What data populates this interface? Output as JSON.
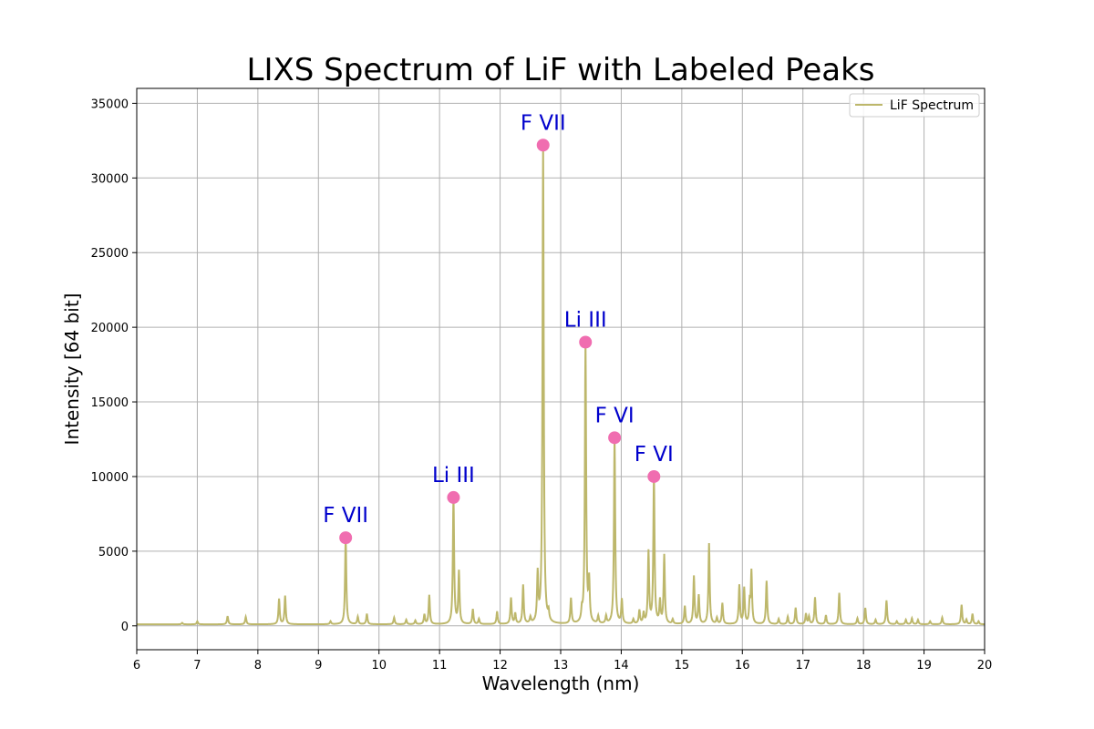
{
  "chart_data": {
    "type": "line",
    "title": "LIXS Spectrum of LiF with Labeled Peaks",
    "xlabel": "Wavelength (nm)",
    "ylabel": "Intensity [64 bit]",
    "xlim": [
      6,
      20
    ],
    "ylim": [
      -1600,
      36000
    ],
    "xticks": [
      6,
      7,
      8,
      9,
      10,
      11,
      12,
      13,
      14,
      15,
      16,
      17,
      18,
      19,
      20
    ],
    "yticks": [
      0,
      5000,
      10000,
      15000,
      20000,
      25000,
      30000,
      35000
    ],
    "grid": true,
    "legend_position": "top-right",
    "baseline": 100,
    "series": [
      {
        "name": "LiF Spectrum",
        "color": "#bdb76b",
        "peaks": [
          [
            6.75,
            100
          ],
          [
            7.0,
            200
          ],
          [
            7.5,
            550
          ],
          [
            7.8,
            500
          ],
          [
            8.35,
            1700
          ],
          [
            8.45,
            1900
          ],
          [
            9.2,
            200
          ],
          [
            9.45,
            5900
          ],
          [
            9.65,
            500
          ],
          [
            9.8,
            700
          ],
          [
            10.25,
            450
          ],
          [
            10.45,
            300
          ],
          [
            10.6,
            250
          ],
          [
            10.75,
            650
          ],
          [
            10.83,
            1950
          ],
          [
            11.23,
            8600
          ],
          [
            11.32,
            3500
          ],
          [
            11.55,
            1000
          ],
          [
            11.65,
            350
          ],
          [
            11.95,
            850
          ],
          [
            12.18,
            1750
          ],
          [
            12.25,
            700
          ],
          [
            12.38,
            2600
          ],
          [
            12.5,
            400
          ],
          [
            12.62,
            3200
          ],
          [
            12.71,
            32200
          ],
          [
            12.8,
            600
          ],
          [
            13.17,
            1700
          ],
          [
            13.35,
            700
          ],
          [
            13.41,
            19000
          ],
          [
            13.47,
            2700
          ],
          [
            13.62,
            500
          ],
          [
            13.75,
            500
          ],
          [
            13.89,
            12600
          ],
          [
            14.01,
            1600
          ],
          [
            14.2,
            300
          ],
          [
            14.3,
            900
          ],
          [
            14.37,
            700
          ],
          [
            14.45,
            4800
          ],
          [
            14.54,
            10000
          ],
          [
            14.64,
            1500
          ],
          [
            14.71,
            4600
          ],
          [
            14.85,
            300
          ],
          [
            15.05,
            1200
          ],
          [
            15.2,
            3200
          ],
          [
            15.28,
            1900
          ],
          [
            15.45,
            5400
          ],
          [
            15.58,
            400
          ],
          [
            15.67,
            1400
          ],
          [
            15.95,
            2600
          ],
          [
            16.03,
            2400
          ],
          [
            16.12,
            1300
          ],
          [
            16.15,
            3500
          ],
          [
            16.4,
            2900
          ],
          [
            16.6,
            350
          ],
          [
            16.75,
            500
          ],
          [
            16.88,
            1100
          ],
          [
            17.05,
            700
          ],
          [
            17.1,
            500
          ],
          [
            17.2,
            1800
          ],
          [
            17.38,
            600
          ],
          [
            17.6,
            2100
          ],
          [
            17.9,
            400
          ],
          [
            18.03,
            1100
          ],
          [
            18.2,
            300
          ],
          [
            18.38,
            1600
          ],
          [
            18.55,
            200
          ],
          [
            18.7,
            300
          ],
          [
            18.8,
            400
          ],
          [
            18.9,
            300
          ],
          [
            19.1,
            200
          ],
          [
            19.3,
            450
          ],
          [
            19.62,
            1300
          ],
          [
            19.7,
            300
          ],
          [
            19.8,
            700
          ],
          [
            19.9,
            200
          ]
        ]
      }
    ],
    "labeled_peaks": [
      {
        "x": 9.45,
        "y": 5900,
        "label": "F VII"
      },
      {
        "x": 11.23,
        "y": 8600,
        "label": "Li III"
      },
      {
        "x": 12.71,
        "y": 32200,
        "label": "F VII"
      },
      {
        "x": 13.41,
        "y": 19000,
        "label": "Li III"
      },
      {
        "x": 13.89,
        "y": 12600,
        "label": "F VI"
      },
      {
        "x": 14.54,
        "y": 10000,
        "label": "F VI"
      }
    ],
    "marker_color": "#f06db0",
    "label_color": "#0000cc"
  }
}
